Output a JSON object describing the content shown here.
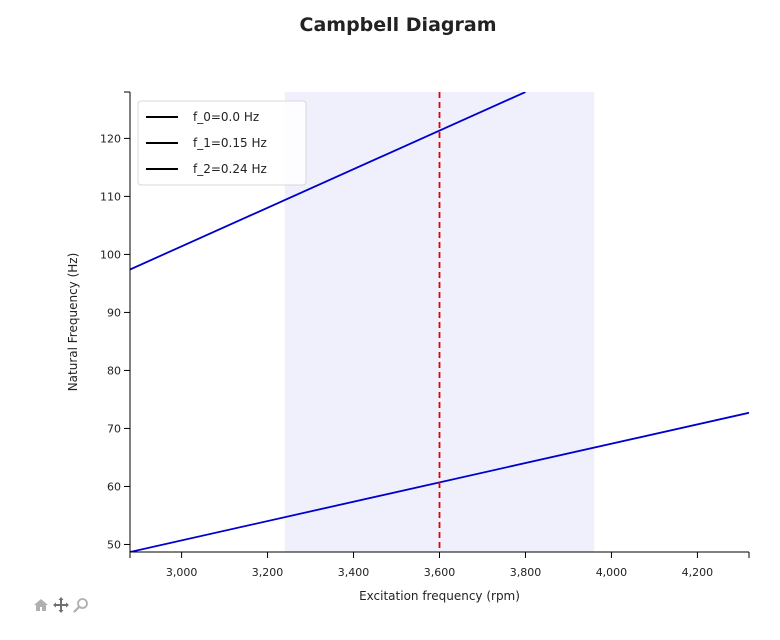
{
  "chart_data": {
    "type": "line",
    "title": "Campbell Diagram",
    "xlabel": "Excitation frequency (rpm)",
    "ylabel": "Natural Frequency (Hz)",
    "xlim": [
      2880,
      4320
    ],
    "ylim": [
      48.7,
      128
    ],
    "xticks": [
      3000,
      3200,
      3400,
      3600,
      3800,
      4000,
      4200
    ],
    "xtick_labels": [
      "3,000",
      "3,200",
      "3,400",
      "3,600",
      "3,800",
      "4,000",
      "4,200"
    ],
    "yticks": [
      50,
      60,
      70,
      80,
      90,
      100,
      110,
      120
    ],
    "ytick_labels": [
      "50",
      "60",
      "70",
      "80",
      "90",
      "100",
      "110",
      "120"
    ],
    "grid": false,
    "legend_position": "top-left",
    "series": [
      {
        "name": "f_0=0.0 Hz",
        "color": "#0000cc",
        "x": [
          2880,
          4320
        ],
        "y": [
          48.7,
          72.7
        ]
      },
      {
        "name": "f_1=0.15 Hz",
        "color": "#0000cc",
        "x": [
          2880,
          3800
        ],
        "y": [
          97.4,
          128
        ]
      },
      {
        "name": "f_2=0.24 Hz",
        "color": "#0000cc",
        "x": [],
        "y": []
      }
    ],
    "legend_line_color": "#000000",
    "operating_band": {
      "x_start": 3240,
      "x_end": 3960,
      "color": "#f0f0fc"
    },
    "operating_speed": {
      "x": 3600,
      "color": "#e00000",
      "style": "dashed"
    }
  },
  "toolbar": {
    "home_icon": "home-icon",
    "pan_icon": "pan-icon",
    "zoom_icon": "zoom-icon"
  }
}
